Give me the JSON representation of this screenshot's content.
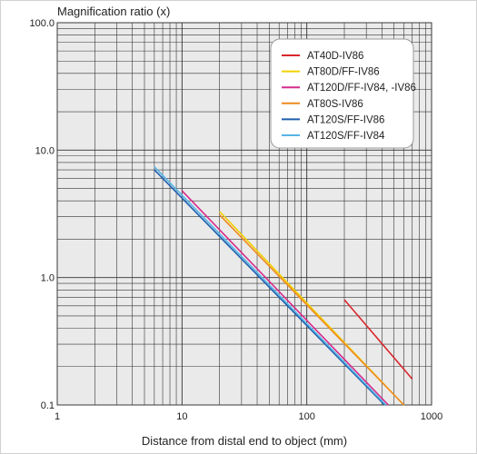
{
  "chart_data": {
    "type": "line",
    "ylabel": "Magnification ratio (x)",
    "xlabel": "Distance from distal end to object (mm)",
    "xscale": "log",
    "yscale": "log",
    "xlim": [
      1,
      1000
    ],
    "ylim": [
      0.1,
      100
    ],
    "x_tick_labels": [
      "1",
      "10",
      "100",
      "1000"
    ],
    "y_tick_labels": [
      "0.1",
      "1.0",
      "10.0",
      "100.0"
    ],
    "grid": true,
    "legend_position": "top-right",
    "series": [
      {
        "name": "AT40D-IV86",
        "color": "#d9262b",
        "x": [
          200,
          700
        ],
        "y": [
          0.67,
          0.16
        ]
      },
      {
        "name": "AT80D/FF-IV86",
        "color": "#f2d000",
        "x": [
          20,
          600
        ],
        "y": [
          3.3,
          0.1
        ]
      },
      {
        "name": "AT120D/FF-IV84, -IV86",
        "color": "#d62a8c",
        "x": [
          10,
          450
        ],
        "y": [
          4.8,
          0.1
        ]
      },
      {
        "name": "AT80S-IV86",
        "color": "#ef8a1e",
        "x": [
          20,
          600
        ],
        "y": [
          3.1,
          0.1
        ]
      },
      {
        "name": "AT120S/FF-IV86",
        "color": "#1f5fad",
        "x": [
          6,
          420
        ],
        "y": [
          7.0,
          0.1
        ]
      },
      {
        "name": "AT120S/FF-IV84",
        "color": "#56b4e6",
        "x": [
          6,
          430
        ],
        "y": [
          7.4,
          0.1
        ]
      }
    ]
  }
}
